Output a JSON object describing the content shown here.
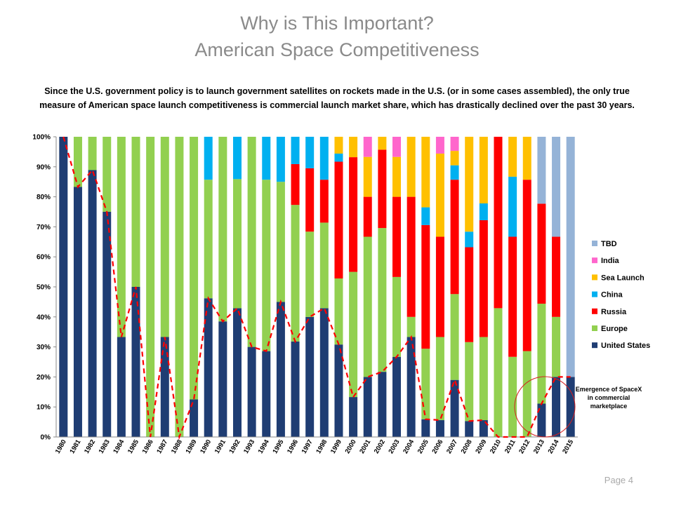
{
  "slide": {
    "title_line1": "Why is This Important?",
    "title_line2": "American Space Competitiveness",
    "subtitle": "Since the U.S. government policy is to launch government satellites on rockets made in the U.S. (or in some cases assembled), the only true measure of American space launch competitiveness is commercial launch market share, which has drastically declined over the past 30 years.",
    "page_label": "Page 4"
  },
  "chart_data": {
    "type": "bar",
    "stacked": true,
    "categories": [
      "1980",
      "1981",
      "1982",
      "1983",
      "1984",
      "1985",
      "1986",
      "1987",
      "1988",
      "1989",
      "1990",
      "1991",
      "1992",
      "1993",
      "1994",
      "1995",
      "1996",
      "1997",
      "1998",
      "1999",
      "2000",
      "2001",
      "2002",
      "2003",
      "2004",
      "2005",
      "2006",
      "2007",
      "2008",
      "2009",
      "2010",
      "2011",
      "2012",
      "2013",
      "2014",
      "2015"
    ],
    "ylim": [
      0,
      100
    ],
    "yticks": [
      "0%",
      "10%",
      "20%",
      "30%",
      "40%",
      "50%",
      "60%",
      "70%",
      "80%",
      "90%",
      "100%"
    ],
    "legend_position": "right",
    "series": [
      {
        "name": "United States",
        "color": "#1f3d73",
        "values": [
          100,
          83.3,
          88.9,
          75,
          33.3,
          50,
          0,
          33.3,
          0,
          12.5,
          46.2,
          38.5,
          42.9,
          30,
          28.6,
          45,
          31.8,
          40,
          42.9,
          30.8,
          13.3,
          20,
          21.7,
          26.7,
          33.3,
          5.9,
          5.6,
          19,
          5.3,
          5.6,
          0,
          0,
          0,
          11.1,
          20,
          20
        ]
      },
      {
        "name": "Europe",
        "color": "#92d050",
        "values": [
          0,
          16.7,
          11.1,
          25,
          66.7,
          50,
          100,
          66.7,
          100,
          87.5,
          39.5,
          61.5,
          43,
          70,
          57.1,
          40,
          45.5,
          28.4,
          28.5,
          22,
          41.7,
          46.7,
          47.9,
          26.6,
          6.7,
          23.5,
          27.7,
          28.6,
          26.3,
          27.7,
          42.9,
          26.7,
          28.6,
          33.3,
          20,
          0
        ]
      },
      {
        "name": "Russia",
        "color": "#ff0000",
        "values": [
          0,
          0,
          0,
          0,
          0,
          0,
          0,
          0,
          0,
          0,
          0,
          0,
          0,
          0,
          0,
          0,
          13.6,
          21.1,
          14.3,
          38.9,
          38.2,
          13.3,
          26.1,
          26.7,
          40,
          41.2,
          33.4,
          38.1,
          31.6,
          38.9,
          57.1,
          40,
          57.1,
          33.3,
          26.7,
          0
        ]
      },
      {
        "name": "China",
        "color": "#00b0f0",
        "values": [
          0,
          0,
          0,
          0,
          0,
          0,
          0,
          0,
          0,
          0,
          14.3,
          0,
          14.1,
          0,
          14.3,
          15,
          9.1,
          10.5,
          14.3,
          2.7,
          0,
          0,
          0,
          0,
          0,
          5.9,
          0,
          4.8,
          5.2,
          5.6,
          0,
          20,
          0,
          0,
          0,
          0
        ]
      },
      {
        "name": "Sea Launch",
        "color": "#ffc000",
        "values": [
          0,
          0,
          0,
          0,
          0,
          0,
          0,
          0,
          0,
          0,
          0,
          0,
          0,
          0,
          0,
          0,
          0,
          0,
          0,
          5.6,
          6.8,
          13.3,
          4.3,
          13.3,
          20,
          23.5,
          27.7,
          4.8,
          31.6,
          22.2,
          0,
          13.3,
          14.3,
          0,
          0,
          0
        ]
      },
      {
        "name": "India",
        "color": "#ff66cc",
        "values": [
          0,
          0,
          0,
          0,
          0,
          0,
          0,
          0,
          0,
          0,
          0,
          0,
          0,
          0,
          0,
          0,
          0,
          0,
          0,
          0,
          0,
          6.7,
          0,
          6.7,
          0,
          0,
          5.6,
          4.7,
          0,
          0,
          0,
          0,
          0,
          0,
          0,
          0
        ]
      },
      {
        "name": "TBD",
        "color": "#95b3d7",
        "values": [
          0,
          0,
          0,
          0,
          0,
          0,
          0,
          0,
          0,
          0,
          0,
          0,
          0,
          0,
          0,
          0,
          0,
          0,
          0,
          0,
          0,
          0,
          0,
          0,
          0,
          0,
          0,
          0,
          0,
          0,
          0,
          0,
          0,
          22.3,
          33.3,
          80
        ]
      }
    ],
    "legend_order": [
      "TBD",
      "India",
      "Sea Launch",
      "China",
      "Russia",
      "Europe",
      "United States"
    ],
    "trend_line": {
      "color": "#ff0000",
      "style": "dashed",
      "follows": "United States"
    },
    "annotation": {
      "lines": [
        "Emergence of SpaceX",
        "in commercial",
        "marketplace"
      ],
      "circle_color": "#d62020"
    }
  }
}
